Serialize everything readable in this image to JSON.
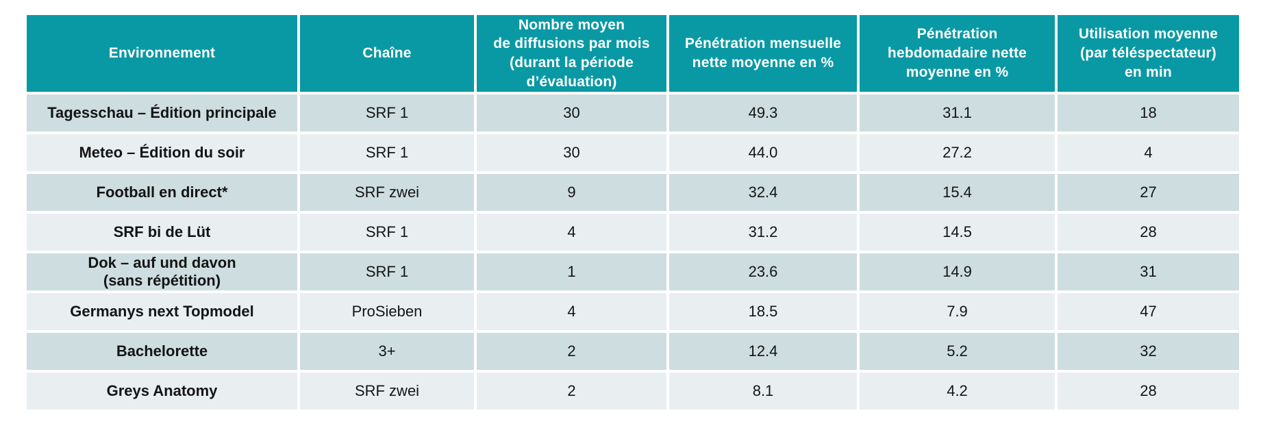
{
  "colors": {
    "header_background": "#0999a4",
    "header_text": "#ffffff",
    "row_dark_background": "#cddde0",
    "row_light_background": "#e9eff1",
    "body_text": "#141414",
    "grid_gap": "#ffffff"
  },
  "chart_data": {
    "type": "table",
    "columns": [
      "Environnement",
      "Chaîne",
      "Nombre moyen\nde diffusions par mois\n(durant la période\nd’évaluation)",
      "Pénétration mensuelle\nnette moyenne en %",
      "Pénétration\nhebdomadaire nette\nmoyenne en %",
      "Utilisation moyenne\n(par téléspectateur)\nen min"
    ],
    "rows": [
      [
        "Tagesschau – Édition principale",
        "SRF 1",
        "30",
        "49.3",
        "31.1",
        "18"
      ],
      [
        "Meteo – Édition du soir",
        "SRF 1",
        "30",
        "44.0",
        "27.2",
        "4"
      ],
      [
        "Football en direct*",
        "SRF zwei",
        "9",
        "32.4",
        "15.4",
        "27"
      ],
      [
        "SRF bi de Lüt",
        "SRF 1",
        "4",
        "31.2",
        "14.5",
        "28"
      ],
      [
        "Dok – auf und davon\n(sans répétition)",
        "SRF 1",
        "1",
        "23.6",
        "14.9",
        "31"
      ],
      [
        "Germanys next Topmodel",
        "ProSieben",
        "4",
        "18.5",
        "7.9",
        "47"
      ],
      [
        "Bachelorette",
        "3+",
        "2",
        "12.4",
        "5.2",
        "32"
      ],
      [
        "Greys Anatomy",
        "SRF zwei",
        "2",
        "8.1",
        "4.2",
        "28"
      ]
    ]
  }
}
